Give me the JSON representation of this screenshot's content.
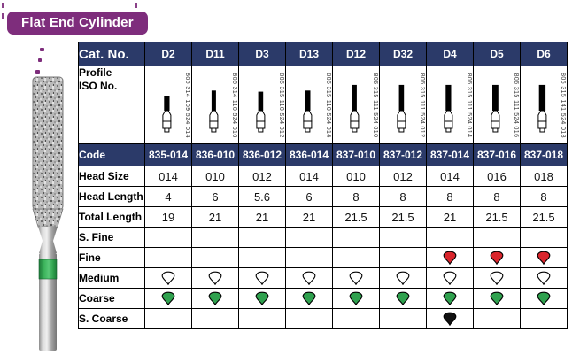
{
  "page": {
    "title_badge": "Flat End Cylinder"
  },
  "colors": {
    "navy": "#2B3A69",
    "purple": "#7E2D7C",
    "grit_red": "#D9252C",
    "grit_green": "#2FA14E",
    "grit_white": "#FFFFFF",
    "grit_black": "#111111",
    "band_green": "#2FA14D"
  },
  "icons": {
    "grit_drop": "drop-icon",
    "bur_profile": "bur-profile-icon",
    "product_photo": "diamond-bur-photo"
  },
  "table": {
    "header_label": "Cat. No.",
    "columns": [
      "D2",
      "D11",
      "D3",
      "D13",
      "D12",
      "D32",
      "D4",
      "D5",
      "D6"
    ],
    "profile_label_lines": [
      "Profile",
      "ISO No."
    ],
    "iso_numbers": [
      "806 314 109 524 014",
      "806 314 110 524 010",
      "806 315 110 524 012",
      "806 315 110 524 014",
      "806 315 111 524 010",
      "806 315 111 524 012",
      "806 315 111 524 014",
      "806 315 111 524 016",
      "806 315 141 524 018"
    ],
    "rows": [
      {
        "label": "Code",
        "kind": "code",
        "values": [
          "835-014",
          "836-010",
          "836-012",
          "836-014",
          "837-010",
          "837-012",
          "837-014",
          "837-016",
          "837-018"
        ]
      },
      {
        "label": "Head Size",
        "kind": "text",
        "values": [
          "014",
          "010",
          "012",
          "014",
          "010",
          "012",
          "014",
          "016",
          "018"
        ]
      },
      {
        "label": "Head Length",
        "kind": "text",
        "values": [
          "4",
          "6",
          "5.6",
          "6",
          "8",
          "8",
          "8",
          "8",
          "8"
        ]
      },
      {
        "label": "Total Length",
        "kind": "text",
        "values": [
          "19",
          "21",
          "21",
          "21",
          "21.5",
          "21.5",
          "21",
          "21.5",
          "21.5"
        ]
      },
      {
        "label": "S. Fine",
        "kind": "grit",
        "values": [
          "",
          "",
          "",
          "",
          "",
          "",
          "",
          "",
          ""
        ]
      },
      {
        "label": "Fine",
        "kind": "grit",
        "values": [
          "",
          "",
          "",
          "",
          "",
          "",
          "red",
          "red",
          "red"
        ]
      },
      {
        "label": "Medium",
        "kind": "grit",
        "values": [
          "white",
          "white",
          "white",
          "white",
          "white",
          "white",
          "white",
          "white",
          "white"
        ]
      },
      {
        "label": "Coarse",
        "kind": "grit",
        "values": [
          "green",
          "green",
          "green",
          "green",
          "green",
          "green",
          "green",
          "green",
          "green"
        ]
      },
      {
        "label": "S. Coarse",
        "kind": "grit",
        "values": [
          "",
          "",
          "",
          "",
          "",
          "",
          "black",
          "",
          ""
        ]
      }
    ]
  }
}
